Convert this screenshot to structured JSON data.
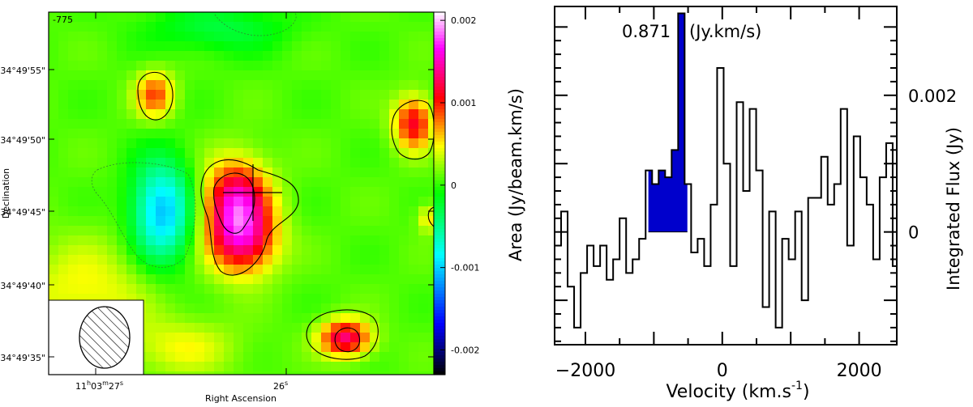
{
  "chart_data": [
    {
      "type": "heatmap",
      "xlabel": "Right Ascension",
      "ylabel": "Declination",
      "corner_label": "-775",
      "x_tick_labels": [
        {
          "h": "11",
          "m": "03",
          "s": "27"
        },
        {
          "h": "",
          "m": "",
          "s": "26"
        }
      ],
      "y_tick_labels": [
        "34°49'55\"",
        "34°49'50\"",
        "34°49'45\"",
        "34°49'40\"",
        "34°49'35\""
      ],
      "colorbar": {
        "ticks": [
          {
            "value": 0.002,
            "label": "0.002"
          },
          {
            "value": 0.001,
            "label": "0.001"
          },
          {
            "value": 0,
            "label": "0"
          },
          {
            "value": -0.001,
            "label": "-0.001"
          },
          {
            "value": -0.002,
            "label": "-0.002"
          }
        ],
        "range": [
          -0.0023,
          0.0021
        ],
        "colormap": [
          "#000000",
          "#0000ff",
          "#00ffff",
          "#00ff00",
          "#ffff00",
          "#ff0000",
          "#ff00ff",
          "#ffffff"
        ]
      }
    },
    {
      "type": "area",
      "title": "",
      "xlabel": "Velocity (km.s",
      "xlabel_superscript": "-1",
      "xlabel_close": ")",
      "ylabel_left": "Area (Jy/beam.km/s)",
      "ylabel_right": "Integrated Flux (Jy)",
      "x_ticks": [
        {
          "value": -2000,
          "label": "−2000"
        },
        {
          "value": 0,
          "label": "0"
        },
        {
          "value": 2000,
          "label": "2000"
        }
      ],
      "y_ticks_right": [
        {
          "value": 0,
          "label": "0"
        },
        {
          "value": 0.002,
          "label": "0.002"
        }
      ],
      "xlim": [
        -2450,
        2550
      ],
      "ylim": [
        -0.00165,
        0.0033
      ],
      "annotation_value": "0.871",
      "annotation_unit": "(Jy.km/s)",
      "highlight_fill": "#0000cc",
      "highlight_range": [
        -1080,
        -510
      ],
      "bin_width": 95,
      "steps": {
        "x": [
          -2450,
          -2355,
          -2260,
          -2165,
          -2070,
          -1975,
          -1880,
          -1785,
          -1690,
          -1595,
          -1500,
          -1405,
          -1310,
          -1215,
          -1120,
          -1025,
          -930,
          -835,
          -740,
          -645,
          -550,
          -455,
          -360,
          -265,
          -170,
          -75,
          20,
          115,
          210,
          305,
          400,
          495,
          590,
          685,
          780,
          875,
          970,
          1065,
          1160,
          1255,
          1350,
          1445,
          1540,
          1635,
          1730,
          1825,
          1920,
          2015,
          2110,
          2205,
          2300,
          2395,
          2490
        ],
        "y": [
          -0.0002,
          0.0003,
          -0.0008,
          -0.0014,
          -0.0006,
          -0.0002,
          -0.0005,
          -0.0002,
          -0.0007,
          -0.0004,
          0.0002,
          -0.0006,
          -0.0004,
          -0.0001,
          0.0009,
          0.0007,
          0.0009,
          0.0008,
          0.0012,
          0.0032,
          0.0007,
          -0.0003,
          -0.0001,
          -0.0005,
          0.0004,
          0.0024,
          0.001,
          -0.0005,
          0.0019,
          0.0006,
          0.0018,
          0.0009,
          -0.0011,
          0.0003,
          -0.0014,
          -0.0001,
          -0.0004,
          0.0003,
          -0.001,
          0.0005,
          0.0005,
          0.0011,
          0.0004,
          0.0007,
          0.0018,
          -0.0002,
          0.0014,
          0.0008,
          0.0004,
          -0.0004,
          0.0008,
          0.0013,
          -0.0005
        ]
      }
    }
  ]
}
